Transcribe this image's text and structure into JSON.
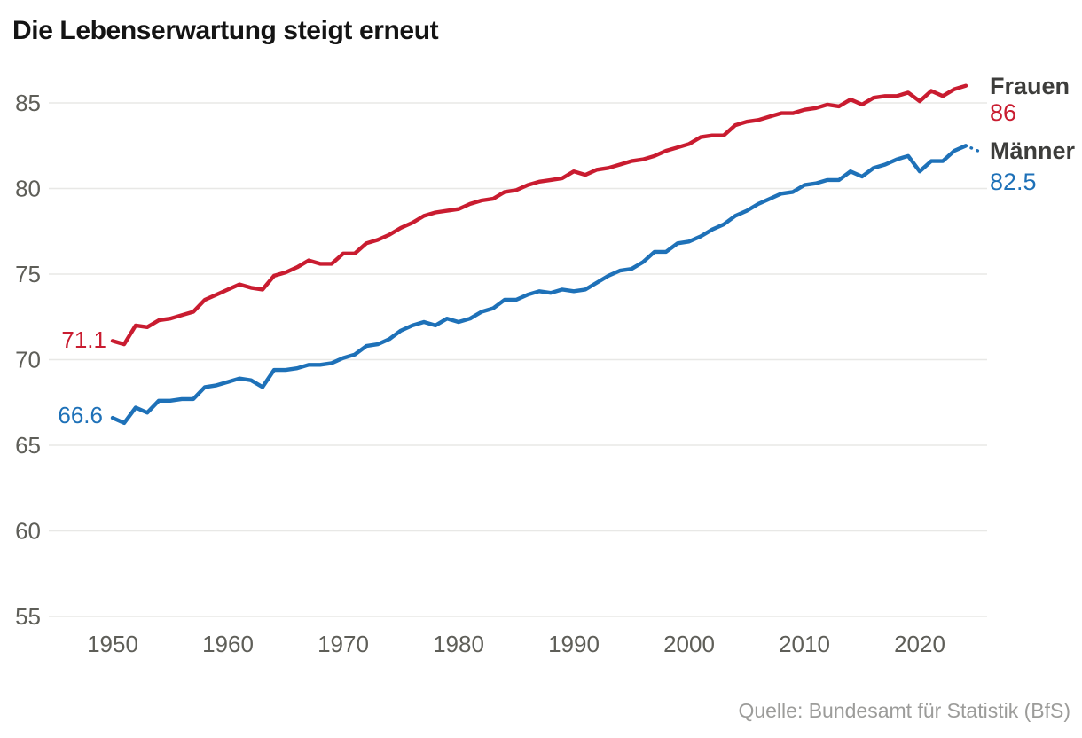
{
  "title": "Die Lebenserwartung steigt erneut",
  "source": "Quelle: Bundesamt für Statistik (BfS)",
  "colors": {
    "frauen": "#c91c30",
    "maenner": "#1e71b8",
    "title": "#141414",
    "axis_text": "#5e5e58",
    "series_label": "#3d3d3b",
    "source_text": "#9c9c9a",
    "gridline": "#e8e8e6",
    "background": "#ffffff"
  },
  "chart_data": {
    "type": "line",
    "title": "Die Lebenserwartung steigt erneut",
    "xlabel": "",
    "ylabel": "",
    "grid": "horizontal",
    "legend_position": "end-of-line-labels",
    "x_ticks": [
      1950,
      1960,
      1970,
      1980,
      1990,
      2000,
      2010,
      2020
    ],
    "y_ticks": [
      85,
      80,
      75,
      70,
      65,
      60,
      55
    ],
    "xlim": [
      1950,
      2024
    ],
    "ylim": [
      54,
      87.5
    ],
    "x": [
      1950,
      1951,
      1952,
      1953,
      1954,
      1955,
      1956,
      1957,
      1958,
      1959,
      1960,
      1961,
      1962,
      1963,
      1964,
      1965,
      1966,
      1967,
      1968,
      1969,
      1970,
      1971,
      1972,
      1973,
      1974,
      1975,
      1976,
      1977,
      1978,
      1979,
      1980,
      1981,
      1982,
      1983,
      1984,
      1985,
      1986,
      1987,
      1988,
      1989,
      1990,
      1991,
      1992,
      1993,
      1994,
      1995,
      1996,
      1997,
      1998,
      1999,
      2000,
      2001,
      2002,
      2003,
      2004,
      2005,
      2006,
      2007,
      2008,
      2009,
      2010,
      2011,
      2012,
      2013,
      2014,
      2015,
      2016,
      2017,
      2018,
      2019,
      2020,
      2021,
      2022,
      2023,
      2024
    ],
    "series": [
      {
        "name": "Frauen",
        "color_key": "frauen",
        "start_label": "71.1",
        "end_label": "86",
        "values": [
          71.1,
          70.9,
          72.0,
          71.9,
          72.3,
          72.4,
          72.6,
          72.8,
          73.5,
          73.8,
          74.1,
          74.4,
          74.2,
          74.1,
          74.9,
          75.1,
          75.4,
          75.8,
          75.6,
          75.6,
          76.2,
          76.2,
          76.8,
          77.0,
          77.3,
          77.7,
          78.0,
          78.4,
          78.6,
          78.7,
          78.8,
          79.1,
          79.3,
          79.4,
          79.8,
          79.9,
          80.2,
          80.4,
          80.5,
          80.6,
          81.0,
          80.8,
          81.1,
          81.2,
          81.4,
          81.6,
          81.7,
          81.9,
          82.2,
          82.4,
          82.6,
          83.0,
          83.1,
          83.1,
          83.7,
          83.9,
          84.0,
          84.2,
          84.4,
          84.4,
          84.6,
          84.7,
          84.9,
          84.8,
          85.2,
          84.9,
          85.3,
          85.4,
          85.4,
          85.6,
          85.1,
          85.7,
          85.4,
          85.8,
          86.0
        ]
      },
      {
        "name": "Männer",
        "color_key": "maenner",
        "start_label": "66.6",
        "end_label": "82.5",
        "values": [
          66.6,
          66.3,
          67.2,
          66.9,
          67.6,
          67.6,
          67.7,
          67.7,
          68.4,
          68.5,
          68.7,
          68.9,
          68.8,
          68.4,
          69.4,
          69.4,
          69.5,
          69.7,
          69.7,
          69.8,
          70.1,
          70.3,
          70.8,
          70.9,
          71.2,
          71.7,
          72.0,
          72.2,
          72.0,
          72.4,
          72.2,
          72.4,
          72.8,
          73.0,
          73.5,
          73.5,
          73.8,
          74.0,
          73.9,
          74.1,
          74.0,
          74.1,
          74.5,
          74.9,
          75.2,
          75.3,
          75.7,
          76.3,
          76.3,
          76.8,
          76.9,
          77.2,
          77.6,
          77.9,
          78.4,
          78.7,
          79.1,
          79.4,
          79.7,
          79.8,
          80.2,
          80.3,
          80.5,
          80.5,
          81.0,
          80.7,
          81.2,
          81.4,
          81.7,
          81.9,
          81.0,
          81.6,
          81.6,
          82.2,
          82.5
        ]
      }
    ]
  }
}
